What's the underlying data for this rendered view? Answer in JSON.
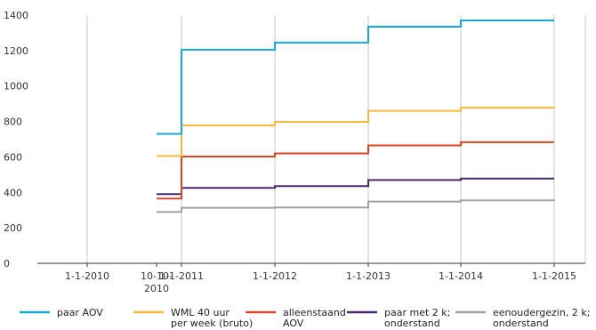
{
  "chart_data": {
    "type": "line",
    "step": true,
    "x_categories": [
      "1-1-2010",
      "10-10-2010",
      "1-1-2011",
      "1-1-2012",
      "1-1-2013",
      "1-1-2014",
      "1-1-2015"
    ],
    "x_tick_labels": [
      {
        "lines": [
          "1-1-2010"
        ]
      },
      {
        "lines": [
          "10-10-",
          "2010"
        ]
      },
      {
        "lines": [
          "1-1-2011"
        ]
      },
      {
        "lines": [
          "1-1-2012"
        ]
      },
      {
        "lines": [
          "1-1-2013"
        ]
      },
      {
        "lines": [
          "1-1-2014"
        ]
      },
      {
        "lines": [
          "1-1-2015"
        ]
      }
    ],
    "y_ticks": [
      0,
      200,
      400,
      600,
      800,
      1000,
      1200,
      1400
    ],
    "ylim": [
      0,
      1400
    ],
    "grid_x": true,
    "grid_y": false,
    "legend_position": "bottom",
    "series": [
      {
        "name": "paar AOV",
        "legend_lines": [
          "paar AOV"
        ],
        "color": "#1aa7d6",
        "points": [
          [
            "10-10-2010",
            730
          ],
          [
            "1-1-2011",
            1205
          ],
          [
            "1-1-2012",
            1245
          ],
          [
            "1-1-2013",
            1335
          ],
          [
            "1-1-2014",
            1370
          ],
          [
            "1-1-2015",
            1370
          ]
        ]
      },
      {
        "name": "WML 40 uur per week (bruto)",
        "legend_lines": [
          "WML 40 uur",
          "per week (bruto)"
        ],
        "color": "#f6b93b",
        "points": [
          [
            "10-10-2010",
            605
          ],
          [
            "1-1-2011",
            778
          ],
          [
            "1-1-2012",
            798
          ],
          [
            "1-1-2013",
            860
          ],
          [
            "1-1-2014",
            878
          ],
          [
            "1-1-2015",
            882
          ]
        ]
      },
      {
        "name": "alleenstaand AOV",
        "legend_lines": [
          "alleenstaand",
          "AOV"
        ],
        "color": "#d9472b",
        "points": [
          [
            "10-10-2010",
            365
          ],
          [
            "1-1-2011",
            602
          ],
          [
            "1-1-2012",
            620
          ],
          [
            "1-1-2013",
            665
          ],
          [
            "1-1-2014",
            683
          ],
          [
            "1-1-2015",
            683
          ]
        ]
      },
      {
        "name": "paar met 2 k; onderstand",
        "legend_lines": [
          "paar met 2 k;",
          "onderstand"
        ],
        "color": "#4a2a6e",
        "points": [
          [
            "10-10-2010",
            390
          ],
          [
            "1-1-2011",
            425
          ],
          [
            "1-1-2012",
            435
          ],
          [
            "1-1-2013",
            470
          ],
          [
            "1-1-2014",
            478
          ],
          [
            "1-1-2015",
            478
          ]
        ]
      },
      {
        "name": "eenoudergezin, 2 k; onderstand",
        "legend_lines": [
          "eenoudergezin, 2 k;",
          "onderstand"
        ],
        "color": "#a3a3a3",
        "points": [
          [
            "10-10-2010",
            290
          ],
          [
            "1-1-2011",
            313
          ],
          [
            "1-1-2012",
            315
          ],
          [
            "1-1-2013",
            348
          ],
          [
            "1-1-2014",
            355
          ],
          [
            "1-1-2015",
            352
          ]
        ]
      }
    ]
  }
}
